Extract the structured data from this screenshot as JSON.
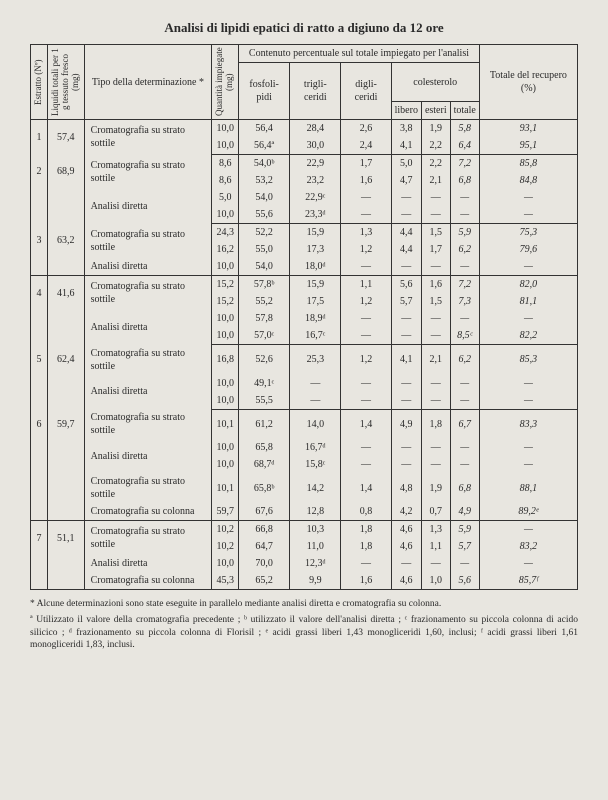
{
  "title": "Analisi di lipidi epatici di ratto a digiuno da 12 ore",
  "headers": {
    "estratto": "Estratto (Nº)",
    "liquidi": "Liquidi totali per 1 g tessuto fresco (mg)",
    "tipo": "Tipo della determinazione *",
    "quantita": "Quantità impiegate (mg)",
    "contenuto": "Contenuto percentuale sul totale impiegato per l'analisi",
    "fosfo": "fosfoli-pidi",
    "trigli": "trigli-ceridi",
    "digli": "digli-ceridi",
    "colesterolo": "colesterolo",
    "libero": "libero",
    "esteri": "esteri",
    "totale_c": "totale",
    "totale": "Totale del recupero (%)"
  },
  "tipo_labels": {
    "croma_sottile": "Cromatografia su strato sottile",
    "analisi_diretta": "Analisi diretta",
    "croma_colonna": "Cromatografia su colonna"
  },
  "rows": [
    {
      "n": "1",
      "liq": "57,4",
      "tipo": "croma_sottile",
      "qt": [
        "10,0",
        "10,0"
      ],
      "fo": [
        "56,4",
        "56,4ª"
      ],
      "tr": [
        "28,4",
        "30,0"
      ],
      "di": [
        "2,6",
        "2,4"
      ],
      "li": [
        "3,8",
        "4,1"
      ],
      "es": [
        "1,9",
        "2,2"
      ],
      "tc": [
        "5,8",
        "6,4"
      ],
      "to": [
        "93,1",
        "95,1"
      ]
    },
    {
      "n": "2",
      "liq": "68,9",
      "tipo": "croma_sottile",
      "qt": [
        "8,6",
        "8,6"
      ],
      "fo": [
        "54,0ᵇ",
        "53,2"
      ],
      "tr": [
        "22,9",
        "23,2"
      ],
      "di": [
        "1,7",
        "1,6"
      ],
      "li": [
        "5,0",
        "4,7"
      ],
      "es": [
        "2,2",
        "2,1"
      ],
      "tc": [
        "7,2",
        "6,8"
      ],
      "to": [
        "85,8",
        "84,8"
      ]
    },
    {
      "tipo": "analisi_diretta",
      "qt": [
        "5,0",
        "10,0"
      ],
      "fo": [
        "54,0",
        "55,6"
      ],
      "tr": [
        "22,9ᶜ",
        "23,3ᵈ"
      ],
      "di": [
        "—",
        "—"
      ],
      "li": [
        "—",
        "—"
      ],
      "es": [
        "—",
        "—"
      ],
      "tc": [
        "—",
        "—"
      ],
      "to": [
        "—",
        "—"
      ]
    },
    {
      "n": "3",
      "liq": "63,2",
      "tipo": "croma_sottile",
      "qt": [
        "24,3",
        "16,2"
      ],
      "fo": [
        "52,2",
        "55,0"
      ],
      "tr": [
        "15,9",
        "17,3"
      ],
      "di": [
        "1,3",
        "1,2"
      ],
      "li": [
        "4,4",
        "4,4"
      ],
      "es": [
        "1,5",
        "1,7"
      ],
      "tc": [
        "5,9",
        "6,2"
      ],
      "to": [
        "75,3",
        "79,6"
      ]
    },
    {
      "tipo": "analisi_diretta",
      "qt": [
        "10,0"
      ],
      "fo": [
        "54,0"
      ],
      "tr": [
        "18,0ᵈ"
      ],
      "di": [
        "—"
      ],
      "li": [
        "—"
      ],
      "es": [
        "—"
      ],
      "tc": [
        "—"
      ],
      "to": [
        "—"
      ]
    },
    {
      "n": "4",
      "liq": "41,6",
      "tipo": "croma_sottile",
      "qt": [
        "15,2",
        "15,2"
      ],
      "fo": [
        "57,8ᵇ",
        "55,2"
      ],
      "tr": [
        "15,9",
        "17,5"
      ],
      "di": [
        "1,1",
        "1,2"
      ],
      "li": [
        "5,6",
        "5,7"
      ],
      "es": [
        "1,6",
        "1,5"
      ],
      "tc": [
        "7,2",
        "7,3"
      ],
      "to": [
        "82,0",
        "81,1"
      ]
    },
    {
      "tipo": "analisi_diretta",
      "qt": [
        "10,0",
        "10,0"
      ],
      "fo": [
        "57,8",
        "57,0ᶜ"
      ],
      "tr": [
        "18,9ᵈ",
        "16,7ᶜ"
      ],
      "di": [
        "—",
        "—"
      ],
      "li": [
        "—",
        "—"
      ],
      "es": [
        "—",
        "—"
      ],
      "tc": [
        "—",
        "8,5ᶜ"
      ],
      "to": [
        "—",
        "82,2"
      ]
    },
    {
      "n": "5",
      "liq": "62,4",
      "tipo": "croma_sottile",
      "qt": [
        "16,8"
      ],
      "fo": [
        "52,6"
      ],
      "tr": [
        "25,3"
      ],
      "di": [
        "1,2"
      ],
      "li": [
        "4,1"
      ],
      "es": [
        "2,1"
      ],
      "tc": [
        "6,2"
      ],
      "to": [
        "85,3"
      ]
    },
    {
      "tipo": "analisi_diretta",
      "qt": [
        "10,0",
        "10,0"
      ],
      "fo": [
        "49,1ᶜ",
        "55,5"
      ],
      "tr": [
        "—",
        "—"
      ],
      "di": [
        "—",
        "—"
      ],
      "li": [
        "—",
        "—"
      ],
      "es": [
        "—",
        "—"
      ],
      "tc": [
        "—",
        "—"
      ],
      "to": [
        "—",
        "—"
      ]
    },
    {
      "n": "6",
      "liq": "59,7",
      "tipo": "croma_sottile",
      "qt": [
        "10,1"
      ],
      "fo": [
        "61,2"
      ],
      "tr": [
        "14,0"
      ],
      "di": [
        "1,4"
      ],
      "li": [
        "4,9"
      ],
      "es": [
        "1,8"
      ],
      "tc": [
        "6,7"
      ],
      "to": [
        "83,3"
      ]
    },
    {
      "tipo": "analisi_diretta",
      "qt": [
        "10,0",
        "10,0"
      ],
      "fo": [
        "65,8",
        "68,7ᵈ"
      ],
      "tr": [
        "16,7ᵈ",
        "15,8ᶜ"
      ],
      "di": [
        "—",
        "—"
      ],
      "li": [
        "—",
        "—"
      ],
      "es": [
        "—",
        "—"
      ],
      "tc": [
        "—",
        "—"
      ],
      "to": [
        "—",
        "—"
      ]
    },
    {
      "tipo": "croma_sottile",
      "qt": [
        "10,1"
      ],
      "fo": [
        "65,8ᵇ"
      ],
      "tr": [
        "14,2"
      ],
      "di": [
        "1,4"
      ],
      "li": [
        "4,8"
      ],
      "es": [
        "1,9"
      ],
      "tc": [
        "6,8"
      ],
      "to": [
        "88,1"
      ]
    },
    {
      "tipo": "croma_colonna",
      "qt": [
        "59,7"
      ],
      "fo": [
        "67,6"
      ],
      "tr": [
        "12,8"
      ],
      "di": [
        "0,8"
      ],
      "li": [
        "4,2"
      ],
      "es": [
        "0,7"
      ],
      "tc": [
        "4,9"
      ],
      "to": [
        "89,2ᵉ"
      ]
    },
    {
      "n": "7",
      "liq": "51,1",
      "tipo": "croma_sottile",
      "qt": [
        "10,2",
        "10,2"
      ],
      "fo": [
        "66,8",
        "64,7"
      ],
      "tr": [
        "10,3",
        "11,0"
      ],
      "di": [
        "1,8",
        "1,8"
      ],
      "li": [
        "4,6",
        "4,6"
      ],
      "es": [
        "1,3",
        "1,1"
      ],
      "tc": [
        "5,9",
        "5,7"
      ],
      "to": [
        "—",
        "83,2"
      ]
    },
    {
      "tipo": "analisi_diretta",
      "qt": [
        "10,0"
      ],
      "fo": [
        "70,0"
      ],
      "tr": [
        "12,3ᵈ"
      ],
      "di": [
        "—"
      ],
      "li": [
        "—"
      ],
      "es": [
        "—"
      ],
      "tc": [
        "—"
      ],
      "to": [
        "—"
      ]
    },
    {
      "tipo": "croma_colonna",
      "qt": [
        "45,3"
      ],
      "fo": [
        "65,2"
      ],
      "tr": [
        "9,9"
      ],
      "di": [
        "1,6"
      ],
      "li": [
        "4,6"
      ],
      "es": [
        "1,0"
      ],
      "tc": [
        "5,6"
      ],
      "to": [
        "85,7ᶠ"
      ]
    }
  ],
  "group_ends": [
    0,
    2,
    4,
    6,
    8,
    12,
    15
  ],
  "footnotes": {
    "star": "* Alcune determinazioni sono state eseguite in parallelo mediante analisi diretta e cromatografia su colonna.",
    "letters": "ª Utilizzato il valore della cromatografia precedente ; ᵇ utilizzato il valore dell'analisi diretta ; ᶜ frazionamento su piccola colonna di acido silicico ; ᵈ frazionamento su piccola colonna di Florisil ; ᵉ acidi grassi liberi 1,43 monogliceridi 1,60, inclusi; ᶠ acidi grassi liberi 1,61 monogliceridi 1,83, inclusi."
  }
}
